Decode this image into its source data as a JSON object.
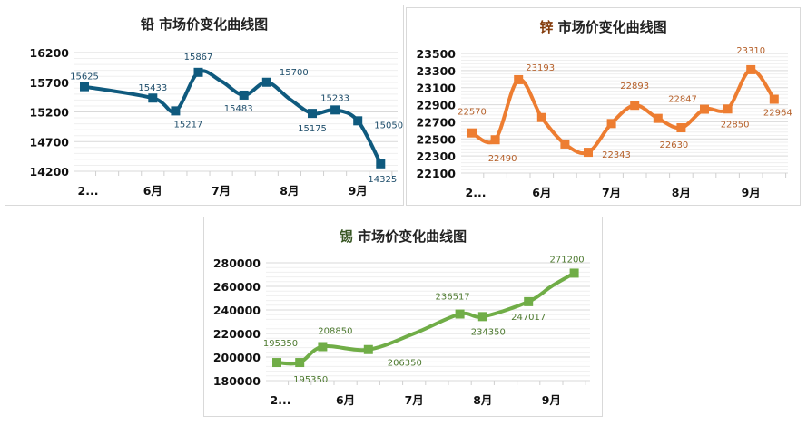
{
  "chart_data": [
    {
      "type": "line",
      "title_metal": "铅",
      "title_rest": " 市场价变化曲线图",
      "color": "#0f5a7e",
      "label_color": "#1f4e6b",
      "metal_color": "#222222",
      "ylim": [
        14200,
        16200
      ],
      "yticks": [
        14200,
        14700,
        15200,
        15700,
        16200
      ],
      "xticks": [
        {
          "slot": 0,
          "label": "2..."
        },
        {
          "slot": 3,
          "label": "6月"
        },
        {
          "slot": 6,
          "label": "7月"
        },
        {
          "slot": 9,
          "label": "8月"
        },
        {
          "slot": 12,
          "label": "9月"
        }
      ],
      "slots": 14,
      "grid": true,
      "points": [
        {
          "slot": 0,
          "value": 15625,
          "marker": true,
          "label": "15625"
        },
        {
          "slot": 3,
          "value": 15433,
          "marker": true,
          "label": "15433"
        },
        {
          "slot": 4,
          "value": 15217,
          "marker": true,
          "label": "15217"
        },
        {
          "slot": 5,
          "value": 15867,
          "marker": true,
          "label": "15867"
        },
        {
          "slot": 6,
          "value": 15720,
          "marker": false
        },
        {
          "slot": 7,
          "value": 15483,
          "marker": true,
          "label": "15483"
        },
        {
          "slot": 8,
          "value": 15700,
          "marker": true,
          "label": "15700"
        },
        {
          "slot": 9,
          "value": 15420,
          "marker": false
        },
        {
          "slot": 10,
          "value": 15175,
          "marker": true,
          "label": "15175"
        },
        {
          "slot": 11,
          "value": 15233,
          "marker": true,
          "label": "15233"
        },
        {
          "slot": 12,
          "value": 15050,
          "marker": true,
          "label": "15050"
        },
        {
          "slot": 13,
          "value": 14325,
          "marker": true,
          "label": "14325"
        }
      ]
    },
    {
      "type": "line",
      "title_metal": "锌",
      "title_rest": " 市场价变化曲线图",
      "color": "#ed7d31",
      "label_color": "#b5602a",
      "metal_color": "#843c0c",
      "ylim": [
        22100,
        23500
      ],
      "yticks": [
        22100,
        22300,
        22500,
        22700,
        22900,
        23100,
        23300,
        23500
      ],
      "xticks": [
        {
          "slot": 0,
          "label": "2..."
        },
        {
          "slot": 3,
          "label": "6月"
        },
        {
          "slot": 6,
          "label": "7月"
        },
        {
          "slot": 9,
          "label": "8月"
        },
        {
          "slot": 12,
          "label": "9月"
        }
      ],
      "slots": 14,
      "grid": true,
      "points": [
        {
          "slot": 0,
          "value": 22570,
          "marker": true,
          "label": "22570"
        },
        {
          "slot": 1,
          "value": 22490,
          "marker": true,
          "label": "22490"
        },
        {
          "slot": 2,
          "value": 23193,
          "marker": true,
          "label": "23193"
        },
        {
          "slot": 3,
          "value": 22750,
          "marker": true
        },
        {
          "slot": 4,
          "value": 22440,
          "marker": true
        },
        {
          "slot": 5,
          "value": 22343,
          "marker": true,
          "label": "22343"
        },
        {
          "slot": 6,
          "value": 22680,
          "marker": true
        },
        {
          "slot": 7,
          "value": 22893,
          "marker": true,
          "label": "22893"
        },
        {
          "slot": 8,
          "value": 22740,
          "marker": true
        },
        {
          "slot": 9,
          "value": 22630,
          "marker": true,
          "label": "22630"
        },
        {
          "slot": 10,
          "value": 22847,
          "marker": true,
          "label": "22847"
        },
        {
          "slot": 11,
          "value": 22850,
          "marker": true,
          "label": "22850"
        },
        {
          "slot": 12,
          "value": 23310,
          "marker": true,
          "label": "23310"
        },
        {
          "slot": 13,
          "value": 22964,
          "marker": true,
          "label": "22964"
        }
      ]
    },
    {
      "type": "line",
      "title_metal": "锡",
      "title_rest": " 市场价变化曲线图",
      "color": "#70ad47",
      "label_color": "#4e7a30",
      "metal_color": "#375623",
      "ylim": [
        180000,
        280000
      ],
      "yticks": [
        180000,
        200000,
        220000,
        240000,
        260000,
        280000
      ],
      "xticks": [
        {
          "slot": 0,
          "label": "2..."
        },
        {
          "slot": 3,
          "label": "6月"
        },
        {
          "slot": 6,
          "label": "7月"
        },
        {
          "slot": 9,
          "label": "8月"
        },
        {
          "slot": 12,
          "label": "9月"
        }
      ],
      "slots": 14,
      "grid": true,
      "points": [
        {
          "slot": 0,
          "value": 195350,
          "marker": true,
          "label": "195350"
        },
        {
          "slot": 1,
          "value": 195350,
          "marker": true,
          "label": "195350"
        },
        {
          "slot": 2,
          "value": 208850,
          "marker": true,
          "label": "208850"
        },
        {
          "slot": 4,
          "value": 206350,
          "marker": true,
          "label": "206350"
        },
        {
          "slot": 6,
          "value": 220000,
          "marker": false
        },
        {
          "slot": 8,
          "value": 236517,
          "marker": true,
          "label": "236517"
        },
        {
          "slot": 9,
          "value": 234350,
          "marker": true,
          "label": "234350"
        },
        {
          "slot": 11,
          "value": 247017,
          "marker": true,
          "label": "247017"
        },
        {
          "slot": 12,
          "value": 260000,
          "marker": false
        },
        {
          "slot": 13,
          "value": 271200,
          "marker": true,
          "label": "271200"
        }
      ]
    }
  ]
}
